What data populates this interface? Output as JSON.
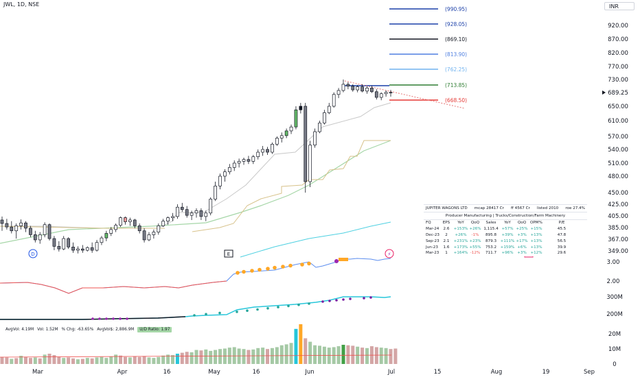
{
  "symbol_line": "JWL, 1D, NSE",
  "currency": "INR",
  "levels": [
    {
      "label": "(990.95)",
      "price": 990.95,
      "color": "#1a3fa8"
    },
    {
      "label": "(928.05)",
      "price": 928.05,
      "color": "#1a3fa8"
    },
    {
      "label": "(869.10)",
      "price": 869.1,
      "color": "#131722"
    },
    {
      "label": "(813.90)",
      "price": 813.9,
      "color": "#4f7fe0"
    },
    {
      "label": "(762.25)",
      "price": 762.25,
      "color": "#6fb2ef"
    },
    {
      "label": "(713.85)",
      "price": 713.85,
      "color": "#2e7d32"
    },
    {
      "label": "(668.50)",
      "price": 668.5,
      "color": "#e53935"
    }
  ],
  "fundamentals": {
    "header": [
      "JUPITER WAGONS LTD",
      "mcap 28417 Cr",
      "ff 4567 Cr",
      "listed 2010",
      "roe 27.4%"
    ],
    "sector": "Producer Manufacturing  |  Trucks/Construction/Farm Machinery",
    "columns": [
      "FQ",
      "EPS",
      "YoY",
      "QoQ",
      "Sales",
      "YoY",
      "QoQ",
      "OPM%",
      "P/E"
    ],
    "rows": [
      [
        "Mar-24",
        "2.6",
        "+153%",
        "+26%",
        "1,115.4",
        "+57%",
        "+25%",
        "+15%",
        "45.5"
      ],
      [
        "Dec-23",
        "2",
        "+26%",
        "-1%",
        "895.8",
        "+39%",
        "+3%",
        "+13%",
        "47.8"
      ],
      [
        "Sep-23",
        "2.1",
        "+231%",
        "+23%",
        "879.3",
        "+111%",
        "+17%",
        "+13%",
        "56.5"
      ],
      [
        "Jun-23",
        "1.6",
        "+173%",
        "+55%",
        "753.2",
        "+159%",
        "+6%",
        "+13%",
        "39.9"
      ],
      [
        "Mar-23",
        "1",
        "+164%",
        "-12%",
        "711.7",
        "+96%",
        "+3%",
        "+12%",
        "29.6"
      ]
    ]
  },
  "stats": {
    "avgvol": "AvgVol: 4.19M",
    "vol": "Vol: 1.52M",
    "chg": "% Chg: -63.65%",
    "avgvol2": "AvgVol$: 2,886.9M",
    "ud": "U/D Ratio: 1.97"
  },
  "markers": {
    "d": "D",
    "e": "E",
    "flash": "⚡"
  },
  "chart_data": {
    "type": "candlestick",
    "x_ticks": [
      "Mar",
      "Apr",
      "16",
      "May",
      "16",
      "Jun",
      "Jul",
      "15",
      "Aug",
      "19",
      "Sep"
    ],
    "price_axis_ticks": [
      "920.00",
      "870.00",
      "820.00",
      "770.00",
      "730.00",
      "689.25",
      "650.00",
      "610.00",
      "570.00",
      "540.00",
      "510.00",
      "480.00",
      "450.00",
      "425.00",
      "405.00",
      "385.00",
      "367.00",
      "349.00"
    ],
    "rs_axis_ticks": [
      "3.00",
      "2.00"
    ],
    "volume_axis_ticks": [
      "300M",
      "200M",
      "20M",
      "10M",
      "0"
    ],
    "last_price": 689.25,
    "candles": [
      [
        398,
        404,
        380,
        392
      ],
      [
        392,
        400,
        382,
        386
      ],
      [
        386,
        396,
        376,
        380
      ],
      [
        380,
        392,
        368,
        388
      ],
      [
        388,
        399,
        382,
        393
      ],
      [
        393,
        396,
        378,
        384
      ],
      [
        384,
        388,
        370,
        374
      ],
      [
        374,
        380,
        362,
        366
      ],
      [
        366,
        378,
        360,
        374
      ],
      [
        374,
        394,
        370,
        390
      ],
      [
        390,
        392,
        365,
        368
      ],
      [
        368,
        372,
        350,
        356
      ],
      [
        356,
        364,
        348,
        352
      ],
      [
        352,
        372,
        350,
        368
      ],
      [
        368,
        370,
        352,
        355
      ],
      [
        355,
        362,
        346,
        350
      ],
      [
        350,
        356,
        345,
        352
      ],
      [
        352,
        358,
        346,
        350
      ],
      [
        350,
        356,
        348,
        354
      ],
      [
        354,
        362,
        346,
        350
      ],
      [
        350,
        366,
        348,
        362
      ],
      [
        362,
        372,
        358,
        369
      ],
      [
        369,
        380,
        364,
        376
      ],
      [
        376,
        386,
        372,
        382
      ],
      [
        382,
        392,
        378,
        389
      ],
      [
        389,
        404,
        386,
        402
      ],
      [
        402,
        404,
        390,
        395
      ],
      [
        395,
        402,
        388,
        398
      ],
      [
        398,
        400,
        384,
        388
      ],
      [
        388,
        392,
        376,
        380
      ],
      [
        380,
        384,
        362,
        366
      ],
      [
        366,
        378,
        364,
        374
      ],
      [
        374,
        382,
        368,
        378
      ],
      [
        378,
        392,
        374,
        388
      ],
      [
        388,
        400,
        386,
        396
      ],
      [
        396,
        404,
        390,
        402
      ],
      [
        402,
        410,
        396,
        404
      ],
      [
        404,
        425,
        400,
        420
      ],
      [
        420,
        428,
        412,
        416
      ],
      [
        416,
        422,
        402,
        406
      ],
      [
        406,
        414,
        398,
        410
      ],
      [
        410,
        418,
        402,
        414
      ],
      [
        414,
        418,
        398,
        404
      ],
      [
        404,
        414,
        396,
        410
      ],
      [
        410,
        440,
        406,
        436
      ],
      [
        436,
        470,
        432,
        462
      ],
      [
        462,
        486,
        456,
        480
      ],
      [
        480,
        496,
        470,
        490
      ],
      [
        490,
        508,
        484,
        500
      ],
      [
        500,
        516,
        492,
        510
      ],
      [
        510,
        520,
        500,
        514
      ],
      [
        514,
        522,
        506,
        518
      ],
      [
        518,
        526,
        508,
        514
      ],
      [
        514,
        528,
        508,
        524
      ],
      [
        524,
        540,
        518,
        534
      ],
      [
        534,
        548,
        526,
        540
      ],
      [
        540,
        546,
        528,
        534
      ],
      [
        534,
        556,
        530,
        552
      ],
      [
        552,
        570,
        548,
        566
      ],
      [
        566,
        580,
        556,
        572
      ],
      [
        572,
        590,
        566,
        584
      ],
      [
        584,
        600,
        576,
        594
      ],
      [
        594,
        650,
        588,
        640
      ],
      [
        640,
        660,
        630,
        650
      ],
      [
        650,
        660,
        450,
        470
      ],
      [
        470,
        560,
        460,
        550
      ],
      [
        550,
        590,
        544,
        582
      ],
      [
        582,
        610,
        578,
        604
      ],
      [
        604,
        640,
        600,
        632
      ],
      [
        632,
        660,
        628,
        650
      ],
      [
        650,
        690,
        646,
        684
      ],
      [
        684,
        704,
        674,
        696
      ],
      [
        696,
        730,
        690,
        716
      ],
      [
        716,
        722,
        700,
        710
      ],
      [
        710,
        716,
        692,
        698
      ],
      [
        698,
        714,
        690,
        708
      ],
      [
        708,
        716,
        690,
        694
      ],
      [
        694,
        710,
        686,
        704
      ],
      [
        704,
        712,
        688,
        692
      ],
      [
        692,
        700,
        670,
        676
      ],
      [
        676,
        690,
        668,
        686
      ],
      [
        686,
        696,
        678,
        690
      ],
      [
        690,
        698,
        678,
        689
      ]
    ],
    "volume": [
      30,
      28,
      22,
      25,
      35,
      30,
      26,
      28,
      24,
      40,
      44,
      38,
      30,
      26,
      28,
      24,
      20,
      22,
      26,
      24,
      28,
      30,
      26,
      32,
      40,
      36,
      30,
      28,
      32,
      30,
      34,
      28,
      26,
      30,
      36,
      40,
      38,
      44,
      48,
      52,
      50,
      60,
      58,
      62,
      56,
      60,
      64,
      66,
      70,
      72,
      66,
      64,
      60,
      62,
      68,
      70,
      64,
      68,
      72,
      80,
      84,
      90,
      150,
      170,
      110,
      95,
      80,
      78,
      74,
      70,
      72,
      76,
      82,
      80,
      78,
      74,
      70,
      68,
      76,
      72,
      70,
      68,
      64,
      66
    ],
    "volume_colors": [
      "#d4a5a5",
      "#d4a5a5",
      "#a5c9a5",
      "#d4a5a5",
      "#a5c9a5",
      "#d4a5a5",
      "#d4a5a5",
      "#a5c9a5",
      "#d4a5a5",
      "#a5c9a5",
      "#d4a5a5",
      "#d4a5a5",
      "#d4a5a5",
      "#a5c9a5",
      "#d4a5a5",
      "#d4a5a5",
      "#a5c9a5",
      "#d4a5a5",
      "#a5c9a5",
      "#d4a5a5",
      "#a5c9a5",
      "#a5c9a5",
      "#a5c9a5",
      "#a5c9a5",
      "#a5c9a5",
      "#d4a5a5",
      "#d4a5a5",
      "#a5c9a5",
      "#d4a5a5",
      "#d4a5a5",
      "#d4a5a5",
      "#a5c9a5",
      "#a5c9a5",
      "#a5c9a5",
      "#a5c9a5",
      "#a5c9a5",
      "#a5c9a5",
      "#26c6da",
      "#d4a5a5",
      "#d4a5a5",
      "#a5c9a5",
      "#a5c9a5",
      "#d4a5a5",
      "#a5c9a5",
      "#a5c9a5",
      "#a5c9a5",
      "#a5c9a5",
      "#a5c9a5",
      "#a5c9a5",
      "#a5c9a5",
      "#a5c9a5",
      "#a5c9a5",
      "#d4a5a5",
      "#a5c9a5",
      "#a5c9a5",
      "#a5c9a5",
      "#d4a5a5",
      "#a5c9a5",
      "#a5c9a5",
      "#a5c9a5",
      "#a5c9a5",
      "#a5c9a5",
      "#26c6da",
      "#ffa726",
      "#d4a5a5",
      "#a5c9a5",
      "#a5c9a5",
      "#a5c9a5",
      "#a5c9a5",
      "#a5c9a5",
      "#a5c9a5",
      "#a5c9a5",
      "#43a047",
      "#d4a5a5",
      "#d4a5a5",
      "#a5c9a5",
      "#d4a5a5",
      "#a5c9a5",
      "#d4a5a5",
      "#d4a5a5",
      "#a5c9a5",
      "#a5c9a5",
      "#d4a5a5",
      "#d4a5a5"
    ]
  }
}
